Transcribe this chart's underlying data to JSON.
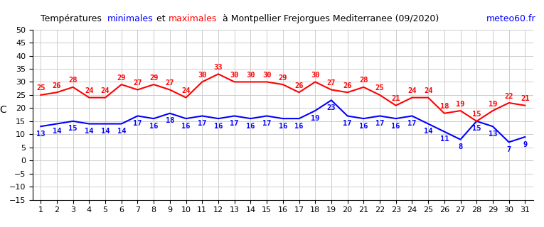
{
  "title_parts": [
    {
      "text": "Températures  ",
      "color": "black"
    },
    {
      "text": "minimales",
      "color": "blue"
    },
    {
      "text": " et ",
      "color": "black"
    },
    {
      "text": "maximales",
      "color": "red"
    },
    {
      "text": "  à Montpellier Frejorgues Mediterranee (09/2020)",
      "color": "black"
    }
  ],
  "watermark": "meteo60.fr",
  "watermark_color": "blue",
  "ylabel": "°C",
  "days": [
    1,
    2,
    3,
    4,
    5,
    6,
    7,
    8,
    9,
    10,
    11,
    12,
    13,
    14,
    15,
    16,
    17,
    18,
    19,
    20,
    21,
    22,
    23,
    24,
    25,
    26,
    27,
    28,
    29,
    30,
    31
  ],
  "min_temps": [
    13,
    14,
    15,
    14,
    14,
    14,
    17,
    16,
    18,
    16,
    17,
    16,
    17,
    16,
    17,
    16,
    16,
    19,
    23,
    17,
    16,
    17,
    16,
    17,
    14,
    11,
    8,
    15,
    13,
    7,
    9
  ],
  "max_temps": [
    25,
    26,
    28,
    24,
    24,
    29,
    27,
    29,
    27,
    24,
    30,
    33,
    30,
    30,
    30,
    29,
    26,
    30,
    27,
    26,
    28,
    25,
    21,
    24,
    24,
    18,
    19,
    15,
    19,
    22,
    21
  ],
  "min_color": "blue",
  "max_color": "red",
  "bg_color": "white",
  "grid_color": "#cccccc",
  "xlim": [
    0.5,
    31.5
  ],
  "ylim": [
    -15,
    50
  ],
  "yticks": [
    -15,
    -10,
    -5,
    0,
    5,
    10,
    15,
    20,
    25,
    30,
    35,
    40,
    45,
    50
  ],
  "xticks": [
    1,
    2,
    3,
    4,
    5,
    6,
    7,
    8,
    9,
    10,
    11,
    12,
    13,
    14,
    15,
    16,
    17,
    18,
    19,
    20,
    21,
    22,
    23,
    24,
    25,
    26,
    27,
    28,
    29,
    30,
    31
  ],
  "linewidth": 1.5,
  "label_fontsize": 7.5,
  "axis_fontsize": 8
}
